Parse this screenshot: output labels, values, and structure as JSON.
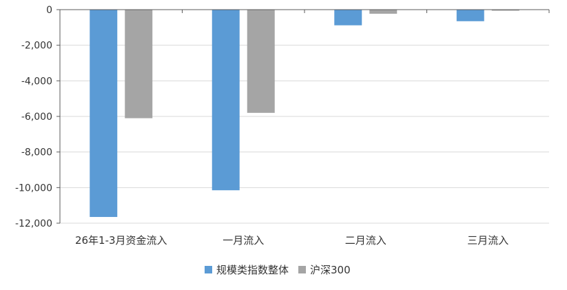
{
  "chart_data": {
    "type": "bar",
    "categories": [
      "26年1-3月资金流入",
      "一月流入",
      "二月流入",
      "三月流入"
    ],
    "series": [
      {
        "name": "规模类指数整体",
        "color": "#5b9bd5",
        "values": [
          -11650,
          -10150,
          -880,
          -650
        ]
      },
      {
        "name": "沪深300",
        "color": "#a5a5a5",
        "values": [
          -6100,
          -5800,
          -230,
          -60
        ]
      }
    ],
    "ylim": [
      -12000,
      0
    ],
    "yticks": [
      0,
      -2000,
      -4000,
      -6000,
      -8000,
      -10000,
      -12000
    ],
    "ytick_labels": [
      "0",
      "-2,000",
      "-4,000",
      "-6,000",
      "-8,000",
      "-10,000",
      "-12,000"
    ],
    "grid": true,
    "legend": "bottom-center",
    "title": "",
    "xlabel": "",
    "ylabel": ""
  }
}
